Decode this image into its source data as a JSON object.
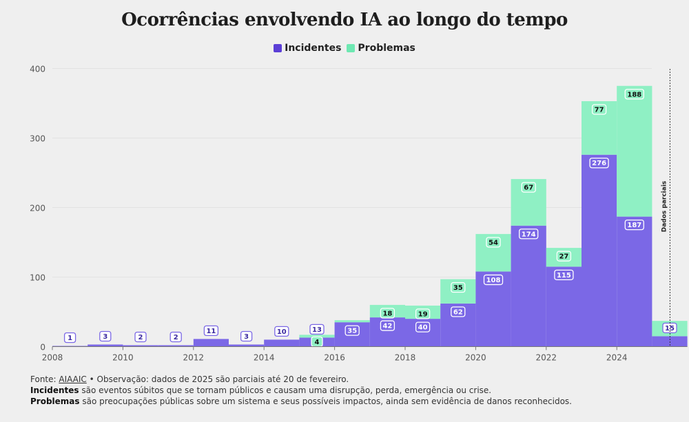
{
  "chart_data": {
    "type": "bar",
    "stacked": true,
    "title": "Ocorrências envolvendo IA ao longo do tempo",
    "categories": [
      2008,
      2009,
      2010,
      2011,
      2012,
      2013,
      2014,
      2015,
      2016,
      2017,
      2018,
      2019,
      2020,
      2021,
      2022,
      2023,
      2024,
      2025
    ],
    "series": [
      {
        "name": "Incidentes",
        "color": "#7b68e6",
        "values": [
          1,
          3,
          2,
          2,
          11,
          3,
          10,
          13,
          35,
          42,
          40,
          62,
          108,
          174,
          115,
          276,
          187,
          15
        ]
      },
      {
        "name": "Problemas",
        "color": "#8ff0c4",
        "values": [
          0,
          0,
          0,
          0,
          0,
          0,
          0,
          4,
          3,
          18,
          19,
          35,
          54,
          67,
          27,
          77,
          188,
          22
        ]
      }
    ],
    "labels": {
      "Incidentes": [
        "1",
        "3",
        "2",
        "2",
        "11",
        "3",
        "10",
        "13",
        "35",
        "42",
        "40",
        "62",
        "108",
        "174",
        "115",
        "276",
        "187",
        "15"
      ],
      "Problemas": [
        "",
        "",
        "",
        "",
        "",
        "",
        "",
        "4",
        "",
        "18",
        "19",
        "35",
        "54",
        "67",
        "27",
        "77",
        "188",
        ""
      ]
    },
    "xticks": [
      2008,
      2010,
      2012,
      2014,
      2016,
      2018,
      2020,
      2022,
      2024
    ],
    "ylim": [
      0,
      400
    ],
    "yticks": [
      0,
      100,
      200,
      300,
      400
    ],
    "xlabel": "",
    "ylabel": "",
    "annotation": "Dados parciais",
    "legend_position": "top-center"
  },
  "legend": {
    "incidents_label": "Incidentes",
    "problems_label": "Problemas",
    "incidents_color": "#5b3fd6",
    "problems_color": "#6ee8b2"
  },
  "footer": {
    "source_prefix": "Fonte: ",
    "source_link": "AIAAIC",
    "source_note": " • Observação: dados de 2025 são parciais até 20 de fevereiro.",
    "incidents_term": "Incidentes",
    "incidents_def": " são eventos súbitos que se tornam públicos e causam uma disrupção, perda, emergência ou crise.",
    "problems_term": "Problemas",
    "problems_def": " são preocupações públicas sobre um sistema e seus possíveis impactos, ainda sem evidência de danos reconhecidos."
  }
}
